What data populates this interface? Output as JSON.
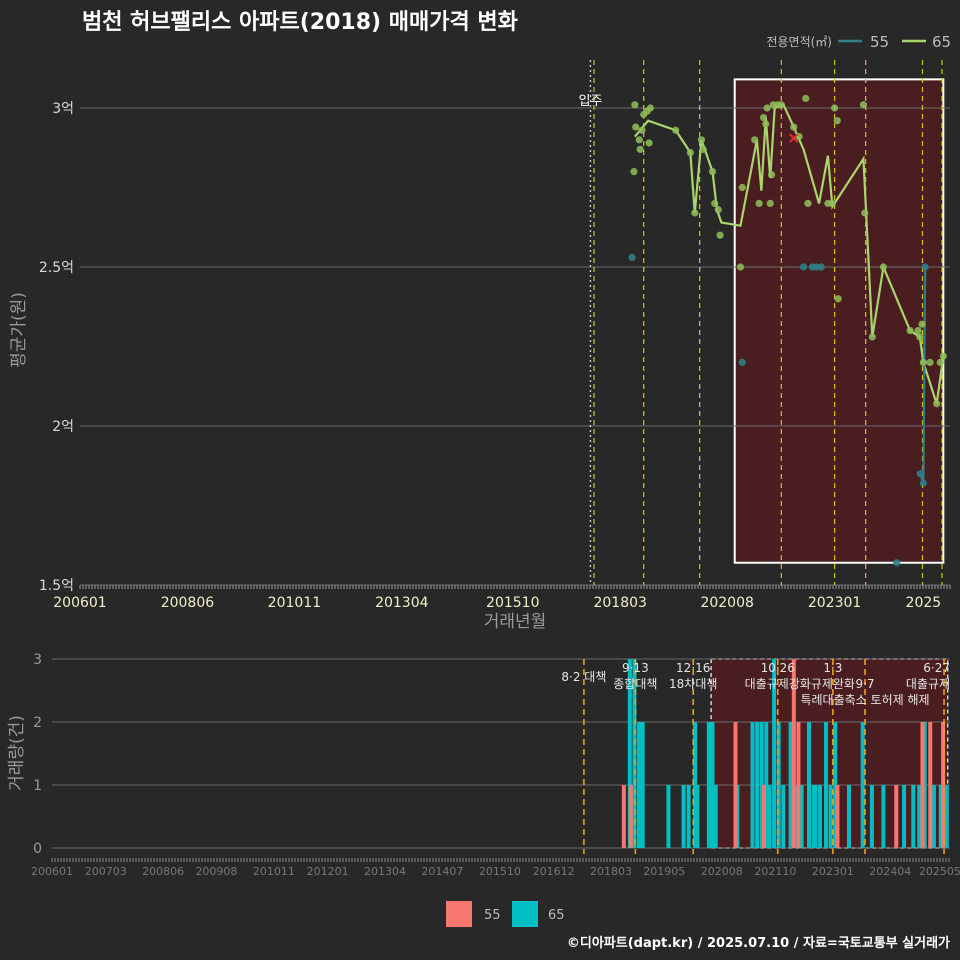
{
  "title": "범천 허브팰리스 아파트(2018) 매매가격 변화",
  "footer": "©디아파트(dapt.kr) / 2025.07.10 / 자료=국토교통부 실거래가",
  "colors": {
    "s55_top": "#2e7f86",
    "s65_top": "#8fbf5a",
    "s65_line": "#a8d56c",
    "s55_bar": "#f8766d",
    "s65_bar": "#00bfc4",
    "highlight_fill": "#4a1e20",
    "policy": "#d8c419"
  },
  "chart_data": [
    {
      "type": "line",
      "name": "price",
      "xlabel": "거래년월",
      "ylabel": "평균가(원)",
      "x_ticks": [
        "200601",
        "200806",
        "201011",
        "201304",
        "201510",
        "201803",
        "202008",
        "202301",
        "2025"
      ],
      "y_ticks": [
        {
          "v": 1.5,
          "label": "1.5억"
        },
        {
          "v": 2,
          "label": "2억"
        },
        {
          "v": 2.5,
          "label": "2.5억"
        },
        {
          "v": 3,
          "label": "3억"
        }
      ],
      "ylim": [
        1.5,
        3.15
      ],
      "legend_title": "전용면적(㎡)",
      "legend": [
        "55",
        "65"
      ],
      "movein": {
        "x": 2017.5,
        "label": "입주"
      },
      "policy_lines": [
        2017.58,
        2018.7,
        2019.96,
        2021.8,
        2023.0,
        2023.7,
        2024.98,
        2025.42
      ],
      "highlight": {
        "x0": 2020.75,
        "x1": 2025.45,
        "y0": 1.57,
        "y1": 3.09
      },
      "marker_x": {
        "x": 2022.08,
        "y": 2.905
      },
      "series": [
        {
          "name": "55",
          "points": [
            [
              2018.44,
              2.53
            ],
            [
              2020.92,
              2.2
            ],
            [
              2022.3,
              2.5
            ],
            [
              2022.5,
              2.5
            ],
            [
              2022.6,
              2.5
            ],
            [
              2022.7,
              2.5
            ],
            [
              2024.4,
              1.57
            ],
            [
              2024.93,
              1.85
            ],
            [
              2025.0,
              1.82
            ],
            [
              2025.04,
              2.5
            ]
          ],
          "line": [
            [
              2024.93,
              1.85
            ],
            [
              2025.0,
              1.82
            ],
            [
              2025.04,
              2.5
            ]
          ]
        },
        {
          "name": "65",
          "points": [
            [
              2018.5,
              3.01
            ],
            [
              2018.52,
              2.94
            ],
            [
              2018.48,
              2.8
            ],
            [
              2018.6,
              2.9
            ],
            [
              2018.62,
              2.87
            ],
            [
              2018.66,
              2.93
            ],
            [
              2018.7,
              2.98
            ],
            [
              2018.78,
              2.99
            ],
            [
              2018.85,
              3.0
            ],
            [
              2018.82,
              2.89
            ],
            [
              2019.42,
              2.93
            ],
            [
              2019.75,
              2.86
            ],
            [
              2019.85,
              2.67
            ],
            [
              2020.0,
              2.9
            ],
            [
              2020.04,
              2.87
            ],
            [
              2020.25,
              2.8
            ],
            [
              2020.3,
              2.7
            ],
            [
              2020.38,
              2.68
            ],
            [
              2020.42,
              2.6
            ],
            [
              2020.88,
              2.5
            ],
            [
              2020.92,
              2.75
            ],
            [
              2021.2,
              2.9
            ],
            [
              2021.3,
              2.7
            ],
            [
              2021.4,
              2.97
            ],
            [
              2021.45,
              2.95
            ],
            [
              2021.48,
              3.0
            ],
            [
              2021.55,
              2.7
            ],
            [
              2021.58,
              2.79
            ],
            [
              2021.62,
              3.01
            ],
            [
              2021.72,
              3.01
            ],
            [
              2021.8,
              3.01
            ],
            [
              2022.08,
              2.94
            ],
            [
              2022.2,
              2.91
            ],
            [
              2022.35,
              3.03
            ],
            [
              2022.4,
              2.7
            ],
            [
              2022.85,
              2.7
            ],
            [
              2022.95,
              2.7
            ],
            [
              2023.0,
              3.0
            ],
            [
              2023.06,
              2.96
            ],
            [
              2023.08,
              2.4
            ],
            [
              2023.65,
              3.01
            ],
            [
              2023.68,
              2.67
            ],
            [
              2023.85,
              2.28
            ],
            [
              2024.1,
              2.5
            ],
            [
              2024.7,
              2.3
            ],
            [
              2024.88,
              2.3
            ],
            [
              2024.92,
              2.28
            ],
            [
              2024.97,
              2.32
            ],
            [
              2025.0,
              2.2
            ],
            [
              2025.15,
              2.2
            ],
            [
              2025.3,
              2.07
            ],
            [
              2025.38,
              2.2
            ],
            [
              2025.45,
              2.22
            ]
          ],
          "line": [
            [
              2018.5,
              2.91
            ],
            [
              2018.8,
              2.96
            ],
            [
              2019.42,
              2.93
            ],
            [
              2019.75,
              2.86
            ],
            [
              2019.85,
              2.67
            ],
            [
              2020.0,
              2.9
            ],
            [
              2020.25,
              2.8
            ],
            [
              2020.35,
              2.68
            ],
            [
              2020.45,
              2.64
            ],
            [
              2020.88,
              2.63
            ],
            [
              2021.25,
              2.9
            ],
            [
              2021.35,
              2.74
            ],
            [
              2021.45,
              2.97
            ],
            [
              2021.55,
              2.78
            ],
            [
              2021.65,
              3.0
            ],
            [
              2021.85,
              3.01
            ],
            [
              2022.08,
              2.94
            ],
            [
              2022.3,
              2.87
            ],
            [
              2022.65,
              2.7
            ],
            [
              2022.85,
              2.85
            ],
            [
              2022.95,
              2.69
            ],
            [
              2023.65,
              2.84
            ],
            [
              2023.85,
              2.28
            ],
            [
              2024.1,
              2.5
            ],
            [
              2024.7,
              2.3
            ],
            [
              2024.92,
              2.28
            ],
            [
              2025.0,
              2.2
            ],
            [
              2025.3,
              2.07
            ],
            [
              2025.45,
              2.22
            ]
          ]
        }
      ]
    },
    {
      "type": "bar",
      "name": "volume",
      "ylabel": "거래량(건)",
      "x_ticks": [
        "200601",
        "200703",
        "200806",
        "200908",
        "201011",
        "201201",
        "201304",
        "201407",
        "201510",
        "201612",
        "201803",
        "201905",
        "202008",
        "202110",
        "202301",
        "202404",
        "202505"
      ],
      "y_ticks": [
        0,
        1,
        2,
        3
      ],
      "ylim": [
        0,
        3
      ],
      "legend": [
        "55",
        "65"
      ],
      "highlight": {
        "x0": 2020.35,
        "x1": 2025.5,
        "y0": 0,
        "y1": 3
      },
      "policies": [
        {
          "x": 2017.58,
          "lines": [
            "8·2 대책"
          ]
        },
        {
          "x": 2018.7,
          "lines": [
            "9·13",
            "종합대책"
          ]
        },
        {
          "x": 2019.96,
          "lines": [
            "12·16",
            "18차대책"
          ]
        },
        {
          "x": 2021.8,
          "lines": [
            "10·26",
            "대출규제강화"
          ]
        },
        {
          "x": 2023.0,
          "lines": [
            "1·3",
            "규제완화"
          ]
        },
        {
          "x": 2023.7,
          "lines": [
            "9·7",
            "특례대출축소 토허제 해제"
          ]
        },
        {
          "x": 2025.42,
          "lines": [
            "6·27",
            "대출규제"
          ]
        }
      ],
      "series": [
        {
          "name": "55",
          "bars": [
            [
              2018.45,
              1
            ],
            [
              2018.6,
              1
            ],
            [
              2020.88,
              2
            ],
            [
              2021.5,
              1
            ],
            [
              2022.15,
              3
            ],
            [
              2022.25,
              2
            ],
            [
              2023.1,
              1
            ],
            [
              2024.38,
              1
            ],
            [
              2024.95,
              2
            ],
            [
              2025.12,
              2
            ],
            [
              2025.4,
              2
            ]
          ]
        },
        {
          "name": "65",
          "bars": [
            [
              2018.58,
              3
            ],
            [
              2018.68,
              3
            ],
            [
              2018.78,
              2
            ],
            [
              2018.86,
              2
            ],
            [
              2019.42,
              1
            ],
            [
              2019.75,
              1
            ],
            [
              2019.86,
              1
            ],
            [
              2020.0,
              2
            ],
            [
              2020.05,
              1
            ],
            [
              2020.3,
              2
            ],
            [
              2020.38,
              2
            ],
            [
              2020.45,
              1
            ],
            [
              2020.92,
              1
            ],
            [
              2021.25,
              2
            ],
            [
              2021.35,
              2
            ],
            [
              2021.45,
              2
            ],
            [
              2021.55,
              2
            ],
            [
              2021.62,
              1
            ],
            [
              2021.72,
              3
            ],
            [
              2021.82,
              2
            ],
            [
              2021.92,
              1
            ],
            [
              2022.08,
              2
            ],
            [
              2022.22,
              1
            ],
            [
              2022.32,
              1
            ],
            [
              2022.48,
              2
            ],
            [
              2022.58,
              1
            ],
            [
              2022.62,
              1
            ],
            [
              2022.72,
              1
            ],
            [
              2022.85,
              2
            ],
            [
              2022.95,
              1
            ],
            [
              2023.05,
              2
            ],
            [
              2023.35,
              1
            ],
            [
              2023.65,
              2
            ],
            [
              2023.85,
              1
            ],
            [
              2024.1,
              1
            ],
            [
              2024.55,
              1
            ],
            [
              2024.75,
              1
            ],
            [
              2024.88,
              1
            ],
            [
              2025.0,
              2
            ],
            [
              2025.2,
              1
            ],
            [
              2025.35,
              1
            ],
            [
              2025.48,
              1
            ]
          ]
        }
      ]
    }
  ]
}
